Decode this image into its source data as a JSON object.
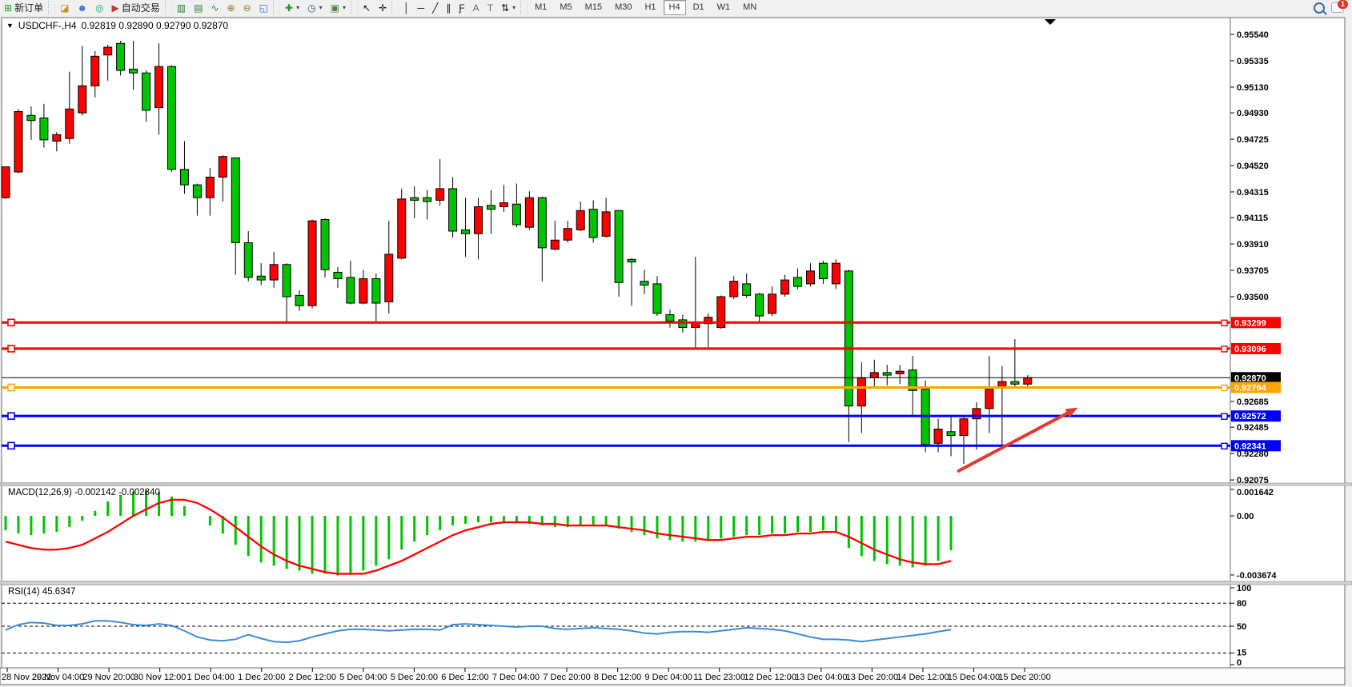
{
  "toolbar": {
    "groups": [
      {
        "items": [
          {
            "name": "new-order-button",
            "glyph": "⊞",
            "color": "#1d9f1d",
            "label": "新订单"
          }
        ]
      },
      {
        "items": [
          {
            "name": "depth-of-market-icon",
            "glyph": "◪",
            "color": "#c8960c"
          },
          {
            "name": "support-chat-icon",
            "glyph": "☻",
            "color": "#3b6fd4"
          },
          {
            "name": "signals-icon",
            "glyph": "◎",
            "color": "#1fa08c"
          },
          {
            "name": "autotrading-button",
            "glyph": "▶",
            "color": "#c03a2b",
            "label": "自动交易"
          }
        ]
      },
      {
        "items": [
          {
            "name": "candlestick-chart-icon",
            "glyph": "▥",
            "color": "#2e7d32"
          },
          {
            "name": "bar-chart-icon",
            "glyph": "▤",
            "color": "#2e7d32"
          },
          {
            "name": "line-chart-icon",
            "glyph": "∿",
            "color": "#2e7d32"
          },
          {
            "name": "zoom-in-icon",
            "glyph": "⊕",
            "color": "#8a7a21"
          },
          {
            "name": "zoom-out-icon",
            "glyph": "⊖",
            "color": "#8a7a21"
          },
          {
            "name": "tile-windows-icon",
            "glyph": "◱",
            "color": "#3b6fd4"
          }
        ]
      },
      {
        "items": [
          {
            "name": "indicators-icon",
            "glyph": "✚",
            "color": "#1d9f1d",
            "dropdown": true
          },
          {
            "name": "periods-clock-icon",
            "glyph": "◷",
            "color": "#35508c",
            "dropdown": true
          },
          {
            "name": "templates-icon",
            "glyph": "▣",
            "color": "#4f7f4f",
            "dropdown": true
          }
        ]
      },
      {
        "items": [
          {
            "name": "cursor-icon",
            "glyph": "↖",
            "color": "#111"
          },
          {
            "name": "crosshair-icon",
            "glyph": "✛",
            "color": "#111"
          }
        ]
      },
      {
        "items": [
          {
            "name": "vertical-line-icon",
            "glyph": "│",
            "color": "#111"
          },
          {
            "name": "horizontal-line-icon",
            "glyph": "─",
            "color": "#111"
          },
          {
            "name": "trendline-icon",
            "glyph": "╱",
            "color": "#111"
          },
          {
            "name": "equidistant-channel-icon",
            "glyph": "∥",
            "color": "#111"
          },
          {
            "name": "fibonacci-icon",
            "glyph": "Ƒ",
            "color": "#111"
          },
          {
            "name": "text-icon",
            "glyph": "A",
            "color": "#666"
          },
          {
            "name": "text-label-icon",
            "glyph": "T",
            "color": "#666"
          },
          {
            "name": "arrows-icon",
            "glyph": "⇅",
            "color": "#111",
            "dropdown": true
          }
        ]
      }
    ],
    "timeframes": [
      {
        "label": "M1",
        "active": false
      },
      {
        "label": "M5",
        "active": false
      },
      {
        "label": "M15",
        "active": false
      },
      {
        "label": "M30",
        "active": false
      },
      {
        "label": "H1",
        "active": false
      },
      {
        "label": "H4",
        "active": true
      },
      {
        "label": "D1",
        "active": false
      },
      {
        "label": "W1",
        "active": false
      },
      {
        "label": "MN",
        "active": false
      }
    ],
    "notification_count": "1"
  },
  "quote": {
    "collapse_glyph": "▼",
    "symbol_period": "USDCHF-,H4",
    "ohlc_text": "0.92819 0.92890 0.92790 0.92870"
  },
  "indicators": {
    "macd_label": "MACD(12,26,9) -0.002142 -0.002840",
    "rsi_label": "RSI(14) 45.6347"
  },
  "chart_data": [
    {
      "type": "candlestick",
      "title": "USDCHF-,H4",
      "bull_color": "#ff0000",
      "bear_color": "#00c400",
      "y_axis_ticks": [
        "0.95540",
        "0.95335",
        "0.95130",
        "0.94930",
        "0.94725",
        "0.94520",
        "0.94315",
        "0.94115",
        "0.93910",
        "0.93705",
        "0.93500",
        "0.92685",
        "0.92485",
        "0.92280",
        "0.92075"
      ],
      "ylim": [
        0.9205,
        0.95671
      ],
      "time_labels": [
        "28 Nov 2022",
        "29 Nov 04:00",
        "29 Nov 20:00",
        "30 Nov 12:00",
        "1 Dec 04:00",
        "1 Dec 20:00",
        "2 Dec 12:00",
        "5 Dec 04:00",
        "5 Dec 20:00",
        "6 Dec 12:00",
        "7 Dec 04:00",
        "7 Dec 20:00",
        "8 Dec 12:00",
        "9 Dec 04:00",
        "11 Dec 23:00",
        "12 Dec 12:00",
        "13 Dec 04:00",
        "13 Dec 20:00",
        "14 Dec 12:00",
        "15 Dec 04:00",
        "15 Dec 20:00"
      ],
      "candles": [
        [
          "r",
          0.9451,
          0.9427,
          0.9451,
          0.9426
        ],
        [
          "r",
          0.9494,
          0.9447,
          0.9496,
          0.9446
        ],
        [
          "g",
          0.9491,
          0.9487,
          0.9498,
          0.9472
        ],
        [
          "g",
          0.9489,
          0.9472,
          0.95,
          0.9466
        ],
        [
          "r",
          0.9476,
          0.9471,
          0.9478,
          0.9463
        ],
        [
          "r",
          0.9496,
          0.9473,
          0.9525,
          0.9469
        ],
        [
          "r",
          0.9514,
          0.9493,
          0.9545,
          0.9491
        ],
        [
          "r",
          0.9537,
          0.9514,
          0.9541,
          0.9505
        ],
        [
          "r",
          0.9544,
          0.9538,
          0.9546,
          0.9518
        ],
        [
          "g",
          0.9547,
          0.9526,
          0.9549,
          0.9522
        ],
        [
          "g",
          0.9527,
          0.9524,
          0.9549,
          0.9511
        ],
        [
          "g",
          0.9524,
          0.9495,
          0.9526,
          0.9486
        ],
        [
          "r",
          0.9529,
          0.9497,
          0.9547,
          0.9476
        ],
        [
          "g",
          0.9529,
          0.9449,
          0.953,
          0.9447
        ],
        [
          "g",
          0.9449,
          0.9437,
          0.9471,
          0.943
        ],
        [
          "g",
          0.9437,
          0.9427,
          0.9438,
          0.9413
        ],
        [
          "r",
          0.9443,
          0.9427,
          0.945,
          0.9413
        ],
        [
          "r",
          0.9459,
          0.9443,
          0.946,
          0.9424
        ],
        [
          "g",
          0.9458,
          0.9392,
          0.9458,
          0.9367
        ],
        [
          "g",
          0.9392,
          0.9365,
          0.9401,
          0.9362
        ],
        [
          "g",
          0.9366,
          0.9363,
          0.9376,
          0.9359
        ],
        [
          "r",
          0.9375,
          0.9363,
          0.9385,
          0.9357
        ],
        [
          "g",
          0.9375,
          0.935,
          0.9376,
          0.933
        ],
        [
          "g",
          0.9351,
          0.9343,
          0.9355,
          0.9339
        ],
        [
          "r",
          0.9409,
          0.9343,
          0.941,
          0.9341
        ],
        [
          "g",
          0.941,
          0.9371,
          0.9411,
          0.9365
        ],
        [
          "g",
          0.9369,
          0.9364,
          0.9373,
          0.9357
        ],
        [
          "g",
          0.9365,
          0.9345,
          0.9378,
          0.9344
        ],
        [
          "r",
          0.9364,
          0.9345,
          0.9371,
          0.9344
        ],
        [
          "g",
          0.9364,
          0.9345,
          0.9368,
          0.9331
        ],
        [
          "r",
          0.9383,
          0.9346,
          0.9409,
          0.9337
        ],
        [
          "r",
          0.9426,
          0.938,
          0.9434,
          0.9379
        ],
        [
          "g",
          0.9427,
          0.9425,
          0.9436,
          0.9411
        ],
        [
          "g",
          0.9427,
          0.9424,
          0.9433,
          0.941
        ],
        [
          "r",
          0.9434,
          0.9425,
          0.9457,
          0.9421
        ],
        [
          "g",
          0.9434,
          0.9401,
          0.9443,
          0.9396
        ],
        [
          "g",
          0.9402,
          0.9399,
          0.9427,
          0.9381
        ],
        [
          "r",
          0.942,
          0.9399,
          0.9427,
          0.9379
        ],
        [
          "g",
          0.9421,
          0.9418,
          0.9433,
          0.9399
        ],
        [
          "r",
          0.9423,
          0.942,
          0.9437,
          0.9416
        ],
        [
          "g",
          0.9422,
          0.9406,
          0.9438,
          0.9404
        ],
        [
          "r",
          0.9427,
          0.9404,
          0.9432,
          0.9402
        ],
        [
          "g",
          0.9427,
          0.9388,
          0.9428,
          0.9362
        ],
        [
          "r",
          0.9394,
          0.9387,
          0.9409,
          0.9386
        ],
        [
          "r",
          0.9403,
          0.9394,
          0.9409,
          0.9392
        ],
        [
          "r",
          0.9417,
          0.9402,
          0.9424,
          0.9401
        ],
        [
          "g",
          0.9418,
          0.9396,
          0.9425,
          0.9392
        ],
        [
          "r",
          0.9416,
          0.9397,
          0.9427,
          0.9396
        ],
        [
          "g",
          0.9417,
          0.9361,
          0.9417,
          0.935
        ],
        [
          "g",
          0.9379,
          0.9377,
          0.938,
          0.9343
        ],
        [
          "g",
          0.9362,
          0.9359,
          0.9371,
          0.9352
        ],
        [
          "g",
          0.936,
          0.9337,
          0.9366,
          0.9335
        ],
        [
          "g",
          0.9336,
          0.9331,
          0.934,
          0.9326
        ],
        [
          "g",
          0.9332,
          0.9326,
          0.9336,
          0.9322
        ],
        [
          "r",
          0.933,
          0.9326,
          0.9381,
          0.9309
        ],
        [
          "r",
          0.9334,
          0.9329,
          0.9337,
          0.9309
        ],
        [
          "r",
          0.935,
          0.9326,
          0.9351,
          0.9325
        ],
        [
          "r",
          0.9362,
          0.935,
          0.9366,
          0.9348
        ],
        [
          "g",
          0.936,
          0.9351,
          0.9368,
          0.9349
        ],
        [
          "g",
          0.9352,
          0.9335,
          0.9353,
          0.933
        ],
        [
          "r",
          0.9352,
          0.9337,
          0.9358,
          0.9335
        ],
        [
          "r",
          0.9363,
          0.9352,
          0.9367,
          0.935
        ],
        [
          "g",
          0.9365,
          0.9358,
          0.9372,
          0.9356
        ],
        [
          "r",
          0.937,
          0.936,
          0.9376,
          0.9358
        ],
        [
          "g",
          0.9376,
          0.9364,
          0.9378,
          0.936
        ],
        [
          "r",
          0.9376,
          0.936,
          0.9379,
          0.9356
        ],
        [
          "g",
          0.937,
          0.9265,
          0.9371,
          0.9237
        ],
        [
          "r",
          0.9287,
          0.9265,
          0.9299,
          0.9244
        ],
        [
          "r",
          0.9291,
          0.9287,
          0.9301,
          0.9279
        ],
        [
          "g",
          0.9291,
          0.9289,
          0.9297,
          0.9281
        ],
        [
          "r",
          0.9292,
          0.929,
          0.9297,
          0.9282
        ],
        [
          "g",
          0.9293,
          0.9277,
          0.9304,
          0.9258
        ],
        [
          "g",
          0.9278,
          0.9235,
          0.9285,
          0.9229
        ],
        [
          "r",
          0.9247,
          0.9236,
          0.9255,
          0.9229
        ],
        [
          "g",
          0.9245,
          0.9242,
          0.9258,
          0.9226
        ],
        [
          "r",
          0.9255,
          0.9242,
          0.9257,
          0.922
        ],
        [
          "r",
          0.9263,
          0.9255,
          0.9268,
          0.9231
        ],
        [
          "r",
          0.9278,
          0.9263,
          0.9304,
          0.9244
        ],
        [
          "r",
          0.9284,
          0.9279,
          0.9296,
          0.9234
        ],
        [
          "g",
          0.9284,
          0.9282,
          0.9317,
          0.928
        ],
        [
          "r",
          0.9287,
          0.9282,
          0.9289,
          0.9279
        ]
      ],
      "horizontal_lines": [
        {
          "price": 0.93299,
          "label": "0.93299",
          "color": "#ff0000",
          "width": 3
        },
        {
          "price": 0.93096,
          "label": "0.93096",
          "color": "#ff0000",
          "width": 3
        },
        {
          "price": 0.9287,
          "label": "0.92870",
          "color": "#000000",
          "width": 1,
          "role": "bid-line"
        },
        {
          "price": 0.92794,
          "label": "0.92794",
          "color": "#ffa500",
          "width": 3
        },
        {
          "price": 0.92572,
          "label": "0.92572",
          "color": "#0000ff",
          "width": 3
        },
        {
          "price": 0.92341,
          "label": "0.92341",
          "color": "#0000ff",
          "width": 3
        }
      ],
      "arrow": {
        "x1_bar": 74.5,
        "y1_price": 0.9214,
        "x2_bar": 83.6,
        "y2_price": 0.9262,
        "color": "#e8382e"
      }
    },
    {
      "type": "macd",
      "params": "12,26,9",
      "value_main": "-0.002142",
      "value_signal": "-0.002840",
      "axis_ticks": [
        "0.001642",
        "0.00",
        "-0.003674"
      ],
      "axis_values": [
        0.001642,
        0.0,
        -0.003674
      ],
      "histogram_color": "#00c400",
      "signal_color": "#ff0000",
      "histogram": [
        -0.0009,
        -0.0011,
        -0.0012,
        -0.0011,
        -0.001,
        -0.0007,
        -0.0003,
        0.0003,
        0.0009,
        0.0013,
        0.0015,
        0.0016,
        0.0015,
        0.0012,
        0.0006,
        0.0,
        -0.0006,
        -0.0011,
        -0.0018,
        -0.0025,
        -0.0029,
        -0.0031,
        -0.0033,
        -0.0034,
        -0.0036,
        -0.0036,
        -0.0037,
        -0.0036,
        -0.0034,
        -0.0031,
        -0.0027,
        -0.0021,
        -0.0016,
        -0.0012,
        -0.0009,
        -0.0006,
        -0.0005,
        -0.0004,
        -0.0004,
        -0.0004,
        -0.0004,
        -0.0005,
        -0.0006,
        -0.0007,
        -0.0007,
        -0.0006,
        -0.0006,
        -0.0006,
        -0.0008,
        -0.001,
        -0.0012,
        -0.0014,
        -0.0015,
        -0.0016,
        -0.0016,
        -0.0015,
        -0.0014,
        -0.0013,
        -0.0012,
        -0.0012,
        -0.0011,
        -0.0011,
        -0.001,
        -0.001,
        -0.0009,
        -0.001,
        -0.002,
        -0.0025,
        -0.0028,
        -0.003,
        -0.0031,
        -0.0032,
        -0.0031,
        -0.0028,
        -0.00214
      ],
      "signal": [
        -0.0016,
        -0.0018,
        -0.002,
        -0.0021,
        -0.0021,
        -0.002,
        -0.0018,
        -0.0014,
        -0.001,
        -0.0005,
        0.0,
        0.0004,
        0.0008,
        0.001,
        0.001,
        0.0008,
        0.0004,
        -0.0001,
        -0.0007,
        -0.0013,
        -0.0019,
        -0.0024,
        -0.0028,
        -0.0031,
        -0.0033,
        -0.0035,
        -0.0036,
        -0.0036,
        -0.0036,
        -0.0034,
        -0.0031,
        -0.0028,
        -0.0024,
        -0.002,
        -0.0016,
        -0.0012,
        -0.0009,
        -0.0007,
        -0.0005,
        -0.0004,
        -0.0004,
        -0.0004,
        -0.0005,
        -0.0005,
        -0.0006,
        -0.0006,
        -0.0006,
        -0.0006,
        -0.0007,
        -0.0008,
        -0.0009,
        -0.0011,
        -0.0012,
        -0.0013,
        -0.0014,
        -0.0015,
        -0.0015,
        -0.0014,
        -0.0013,
        -0.0013,
        -0.0012,
        -0.0012,
        -0.0011,
        -0.0011,
        -0.001,
        -0.001,
        -0.0013,
        -0.0017,
        -0.0021,
        -0.0024,
        -0.0027,
        -0.0029,
        -0.003,
        -0.003,
        -0.0028
      ]
    },
    {
      "type": "rsi",
      "period": "14",
      "current_value": "45.6347",
      "axis_ticks": [
        "100",
        "80",
        "50",
        "15",
        "0"
      ],
      "axis_values": [
        100,
        80,
        50,
        15,
        0
      ],
      "levels": [
        80,
        50,
        15
      ],
      "line_color": "#3d8bd4",
      "values": [
        45,
        52,
        55,
        54,
        51,
        51,
        53,
        57,
        57,
        55,
        52,
        51,
        53,
        51,
        44,
        36,
        32,
        31,
        33,
        39,
        34,
        30,
        29,
        31,
        36,
        40,
        44,
        46,
        46,
        45,
        44,
        45,
        46,
        46,
        45,
        52,
        53,
        52,
        51,
        50,
        49,
        50,
        50,
        47,
        46,
        47,
        48,
        47,
        46,
        44,
        41,
        40,
        42,
        43,
        43,
        42,
        44,
        46,
        48,
        47,
        46,
        44,
        40,
        36,
        33,
        33,
        32,
        30,
        32,
        34,
        36,
        38,
        40,
        43,
        45.6
      ]
    }
  ]
}
